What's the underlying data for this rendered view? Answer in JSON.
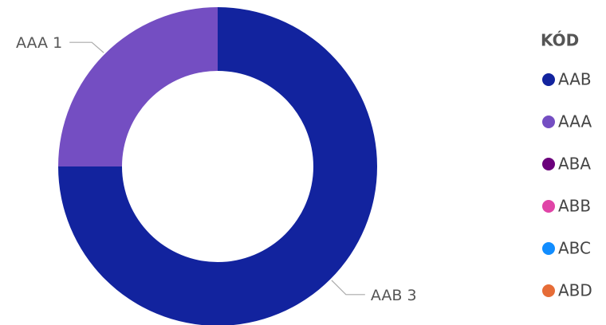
{
  "chart_data": {
    "type": "donut",
    "categories": [
      "AAB",
      "AAA",
      "ABA",
      "ABB",
      "ABC",
      "ABD"
    ],
    "values": [
      3,
      1,
      0,
      0,
      0,
      0
    ],
    "colors": [
      "#12239E",
      "#744EC2",
      "#6B007B",
      "#E044A7",
      "#118DFF",
      "#E66C37"
    ],
    "legend_title": "KÓD",
    "legend_position": "right"
  }
}
